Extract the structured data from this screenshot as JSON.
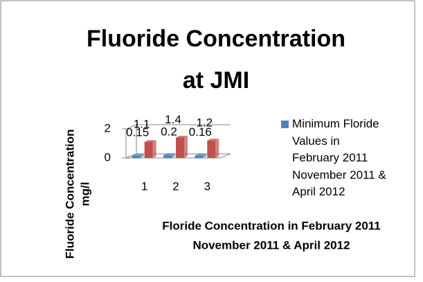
{
  "chart_data": {
    "type": "bar3d",
    "title_lines": [
      "Fluoride Concentration",
      "at JMI"
    ],
    "categories": [
      "1",
      "2",
      "3"
    ],
    "series": [
      {
        "name": "Minimum Floride  Values in February 2011 November 2011 & April 2012",
        "color": "#4f81bd",
        "values": [
          0.15,
          0.2,
          0.16
        ]
      },
      {
        "color": "#c0504d",
        "values": [
          1.1,
          1.4,
          1.2
        ]
      }
    ],
    "ylim": [
      0,
      2
    ],
    "yticks": [
      0,
      2
    ],
    "grid": true,
    "y_label_lines": [
      "Fluoride Concentration",
      "mg/l"
    ],
    "x_label_lines": [
      "Floride Concentration  in February 2011",
      "November 2011 & April 2012"
    ],
    "legend": "right"
  }
}
